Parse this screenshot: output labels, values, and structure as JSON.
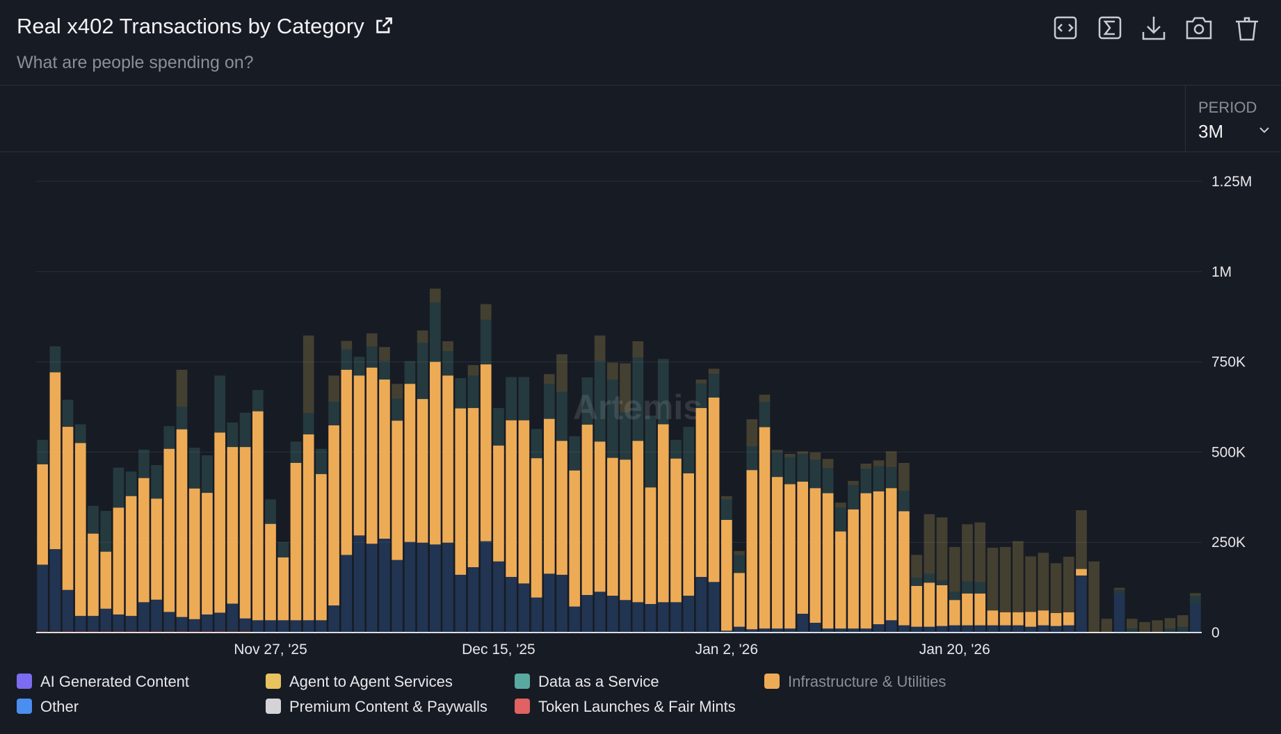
{
  "header": {
    "title": "Real x402 Transactions by Category",
    "subtitle": "What are people spending on?"
  },
  "controls": {
    "period_label": "PERIOD",
    "period_value": "3M"
  },
  "chart_data": {
    "type": "bar",
    "stacked": true,
    "watermark": "Artemis",
    "categories": [
      null,
      null,
      null,
      null,
      null,
      null,
      null,
      null,
      null,
      null,
      null,
      null,
      null,
      null,
      null,
      null,
      null,
      null,
      "Nov 27, '25",
      null,
      null,
      null,
      null,
      null,
      null,
      null,
      null,
      null,
      null,
      null,
      null,
      null,
      null,
      null,
      null,
      null,
      "Dec 15, '25",
      null,
      null,
      null,
      null,
      null,
      null,
      null,
      null,
      null,
      null,
      null,
      null,
      null,
      null,
      null,
      null,
      null,
      "Jan 2, '26",
      null,
      null,
      null,
      null,
      null,
      null,
      null,
      null,
      null,
      null,
      null,
      null,
      null,
      null,
      null,
      null,
      null,
      "Jan 20, '26",
      null,
      null,
      null,
      null,
      null,
      null,
      null,
      null,
      null,
      null,
      null,
      null,
      null,
      null,
      null,
      null,
      null,
      null,
      null
    ],
    "ylim": [
      0,
      1250000
    ],
    "yticks": [
      0,
      {
        "value": 250000,
        "label": "250K"
      },
      {
        "value": 500000,
        "label": "500K"
      },
      {
        "value": 750000,
        "label": "750K"
      },
      {
        "value": 1000000,
        "label": "1M"
      },
      {
        "value": 1250000,
        "label": "1.25M"
      }
    ],
    "grid": true,
    "series": [
      {
        "name": "AI Generated Content",
        "color": "#7b6cf0",
        "values": [
          0,
          0,
          0,
          0,
          0,
          0,
          0,
          0,
          0,
          0,
          0,
          0,
          0,
          0,
          0,
          0,
          0,
          0,
          0,
          0,
          0,
          0,
          0,
          0,
          0,
          0,
          0,
          0,
          0,
          0,
          0,
          0,
          0,
          0,
          0,
          0,
          0,
          0,
          0,
          0,
          0,
          0,
          0,
          0,
          0,
          0,
          0,
          0,
          0,
          0,
          0,
          0,
          0,
          0,
          0,
          0,
          0,
          0,
          0,
          0,
          0,
          0,
          0,
          0,
          0,
          0,
          0,
          0,
          0,
          0,
          0,
          0,
          0,
          0,
          0,
          0,
          0,
          0,
          0,
          0,
          0,
          0,
          0,
          0,
          0,
          0,
          0,
          0,
          0,
          0,
          0,
          0
        ]
      },
      {
        "name": "Agent to Agent Services",
        "color": "#e8c35e",
        "values": [
          0,
          0,
          0,
          0,
          0,
          0,
          0,
          0,
          0,
          0,
          0,
          102000,
          0,
          0,
          0,
          0,
          0,
          0,
          0,
          0,
          0,
          215000,
          0,
          72000,
          23000,
          0,
          36000,
          38000,
          41000,
          0,
          34000,
          38000,
          27000,
          0,
          29000,
          43000,
          0,
          0,
          0,
          0,
          27000,
          104000,
          0,
          0,
          70000,
          47000,
          136000,
          45000,
          0,
          0,
          0,
          0,
          11000,
          14000,
          9000,
          11000,
          75000,
          20000,
          5000,
          9000,
          7000,
          20000,
          25000,
          14000,
          11000,
          14000,
          16000,
          43000,
          77000,
          63000,
          165000,
          174000,
          124000,
          158000,
          165000,
          174000,
          181000,
          197000,
          154000,
          160000,
          138000,
          154000,
          163000,
          197000,
          38000,
          5000,
          27000,
          29000,
          34000,
          29000,
          32000,
          7000
        ]
      },
      {
        "name": "Data as a Service",
        "color": "#5aa9a0",
        "values": [
          68000,
          72000,
          75000,
          52000,
          77000,
          113000,
          111000,
          68000,
          79000,
          93000,
          63000,
          63000,
          113000,
          104000,
          158000,
          68000,
          95000,
          59000,
          68000,
          43000,
          59000,
          59000,
          70000,
          66000,
          57000,
          52000,
          59000,
          52000,
          61000,
          63000,
          156000,
          165000,
          68000,
          84000,
          90000,
          124000,
          104000,
          120000,
          120000,
          81000,
          97000,
          136000,
          95000,
          131000,
          224000,
          217000,
          131000,
          231000,
          199000,
          181000,
          52000,
          129000,
          68000,
          66000,
          57000,
          50000,
          66000,
          70000,
          70000,
          75000,
          77000,
          79000,
          70000,
          66000,
          68000,
          68000,
          70000,
          59000,
          57000,
          23000,
          25000,
          14000,
          23000,
          34000,
          32000,
          0,
          0,
          0,
          0,
          0,
          0,
          0,
          0,
          0,
          0,
          11000,
          11000,
          0,
          0,
          11000,
          16000,
          23000
        ]
      },
      {
        "name": "Infrastructure & Utilities",
        "color": "#eeab56",
        "values": [
          278000,
          490000,
          452000,
          479000,
          228000,
          158000,
          296000,
          332000,
          344000,
          280000,
          452000,
          520000,
          362000,
          337000,
          499000,
          434000,
          475000,
          579000,
          267000,
          174000,
          436000,
          515000,
          405000,
          499000,
          513000,
          443000,
          488000,
          441000,
          386000,
          438000,
          398000,
          506000,
          463000,
          461000,
          441000,
          490000,
          321000,
          434000,
          452000,
          386000,
          429000,
          371000,
          377000,
          472000,
          416000,
          382000,
          389000,
          447000,
          323000,
          493000,
          398000,
          339000,
          468000,
          511000,
          307000,
          149000,
          441000,
          558000,
          420000,
          400000,
          366000,
          373000,
          375000,
          269000,
          330000,
          375000,
          368000,
          366000,
          316000,
          113000,
          122000,
          113000,
          70000,
          88000,
          88000,
          41000,
          36000,
          36000,
          41000,
          41000,
          36000,
          36000,
          18000,
          0,
          0,
          0,
          0,
          0,
          0,
          0,
          0,
          0
        ]
      },
      {
        "name": "Other",
        "color": "#4a8ef0",
        "values": [
          183000,
          226000,
          113000,
          41000,
          41000,
          61000,
          45000,
          41000,
          79000,
          86000,
          52000,
          38000,
          32000,
          45000,
          50000,
          75000,
          34000,
          34000,
          34000,
          34000,
          34000,
          34000,
          34000,
          75000,
          215000,
          269000,
          246000,
          260000,
          201000,
          251000,
          249000,
          244000,
          249000,
          160000,
          181000,
          253000,
          197000,
          154000,
          136000,
          97000,
          163000,
          160000,
          72000,
          104000,
          113000,
          102000,
          90000,
          84000,
          79000,
          84000,
          84000,
          102000,
          154000,
          140000,
          5000,
          16000,
          9000,
          11000,
          11000,
          11000,
          52000,
          27000,
          11000,
          11000,
          11000,
          11000,
          23000,
          34000,
          20000,
          16000,
          16000,
          18000,
          20000,
          20000,
          20000,
          20000,
          20000,
          20000,
          16000,
          20000,
          18000,
          20000,
          158000,
          0,
          0,
          108000,
          0,
          0,
          0,
          0,
          0,
          79000
        ]
      },
      {
        "name": "Premium Content & Paywalls",
        "color": "#d4d4d8",
        "values": [
          0,
          0,
          0,
          0,
          0,
          0,
          0,
          0,
          0,
          0,
          0,
          0,
          0,
          0,
          0,
          0,
          0,
          0,
          0,
          0,
          0,
          0,
          0,
          0,
          0,
          0,
          0,
          0,
          0,
          0,
          0,
          0,
          0,
          0,
          0,
          0,
          0,
          0,
          0,
          0,
          0,
          0,
          0,
          0,
          0,
          0,
          0,
          0,
          0,
          0,
          0,
          0,
          0,
          0,
          0,
          0,
          0,
          0,
          0,
          0,
          0,
          0,
          0,
          0,
          0,
          0,
          0,
          0,
          0,
          0,
          0,
          0,
          0,
          0,
          0,
          0,
          0,
          0,
          0,
          0,
          0,
          0,
          0,
          0,
          0,
          0,
          0,
          0,
          0,
          0,
          0,
          0
        ]
      },
      {
        "name": "Token Launches & Fair Mints",
        "color": "#e06262",
        "values": [
          5000,
          5000,
          5000,
          5000,
          5000,
          5000,
          5000,
          5000,
          5000,
          5000,
          5000,
          5000,
          5000,
          5000,
          5000,
          5000,
          5000,
          0,
          0,
          0,
          0,
          0,
          0,
          0,
          0,
          0,
          0,
          0,
          0,
          0,
          0,
          0,
          0,
          0,
          0,
          0,
          0,
          0,
          0,
          0,
          0,
          0,
          0,
          0,
          0,
          0,
          0,
          0,
          0,
          0,
          0,
          0,
          0,
          0,
          0,
          0,
          0,
          0,
          0,
          0,
          0,
          0,
          0,
          0,
          0,
          0,
          0,
          0,
          0,
          0,
          0,
          0,
          0,
          0,
          0,
          0,
          0,
          0,
          0,
          0,
          0,
          0,
          0,
          0,
          0,
          0,
          0,
          0,
          0,
          0,
          0,
          0
        ]
      }
    ]
  }
}
